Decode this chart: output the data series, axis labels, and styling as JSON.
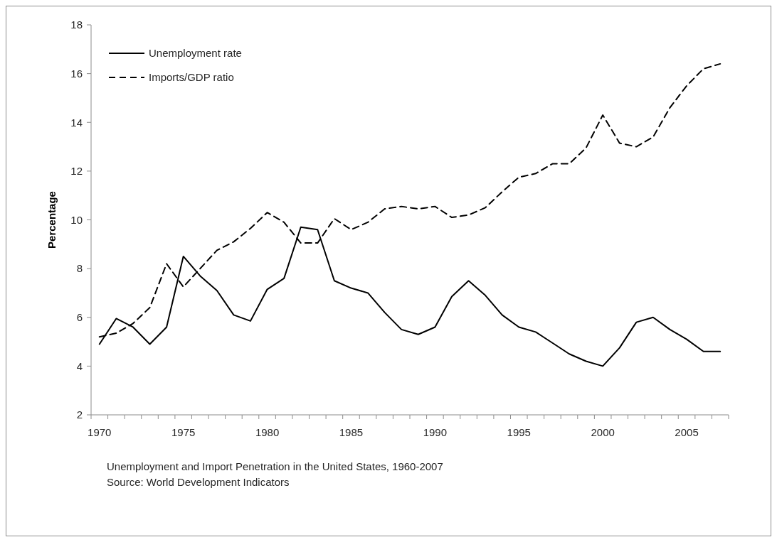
{
  "chart_data": {
    "type": "line",
    "ylabel": "Percentage",
    "categories": [
      "1970",
      null,
      null,
      null,
      null,
      "1975",
      null,
      null,
      null,
      null,
      "1980",
      null,
      null,
      null,
      null,
      "1985",
      null,
      null,
      null,
      null,
      "1990",
      null,
      null,
      null,
      null,
      "1995",
      null,
      null,
      null,
      null,
      "2000",
      null,
      null,
      null,
      null,
      "2005",
      null,
      null
    ],
    "series": [
      {
        "name": "Unemployment rate",
        "color": "#000000",
        "line_style": "solid",
        "values": [
          4.9,
          5.95,
          5.6,
          4.9,
          5.6,
          8.5,
          7.7,
          7.1,
          6.1,
          5.85,
          7.15,
          7.6,
          9.7,
          9.6,
          7.5,
          7.2,
          7.0,
          6.2,
          5.5,
          5.3,
          5.6,
          6.85,
          7.5,
          6.9,
          6.1,
          5.6,
          5.4,
          4.95,
          4.5,
          4.2,
          4.0,
          4.75,
          5.8,
          6.0,
          5.5,
          5.1,
          4.6,
          4.6
        ]
      },
      {
        "name": "Imports/GDP ratio",
        "color": "#000000",
        "line_style": "dashed",
        "values": [
          5.2,
          5.35,
          5.75,
          6.4,
          8.2,
          7.25,
          8.0,
          8.75,
          9.1,
          9.65,
          10.3,
          9.9,
          9.05,
          9.05,
          10.05,
          9.6,
          9.9,
          10.45,
          10.55,
          10.45,
          10.55,
          10.1,
          10.2,
          10.5,
          11.15,
          11.75,
          11.9,
          12.3,
          12.3,
          12.95,
          14.3,
          13.15,
          13.0,
          13.4,
          14.6,
          15.5,
          16.2,
          16.4
        ]
      }
    ],
    "ylim": [
      2,
      18
    ],
    "yticks": [
      2,
      4,
      6,
      8,
      10,
      12,
      14,
      16,
      18
    ],
    "grid": false,
    "legend": "top left",
    "annotations": [
      "Unemployment and Import Penetration in the United States, 1960-2007",
      "Source: World Development Indicators"
    ]
  }
}
